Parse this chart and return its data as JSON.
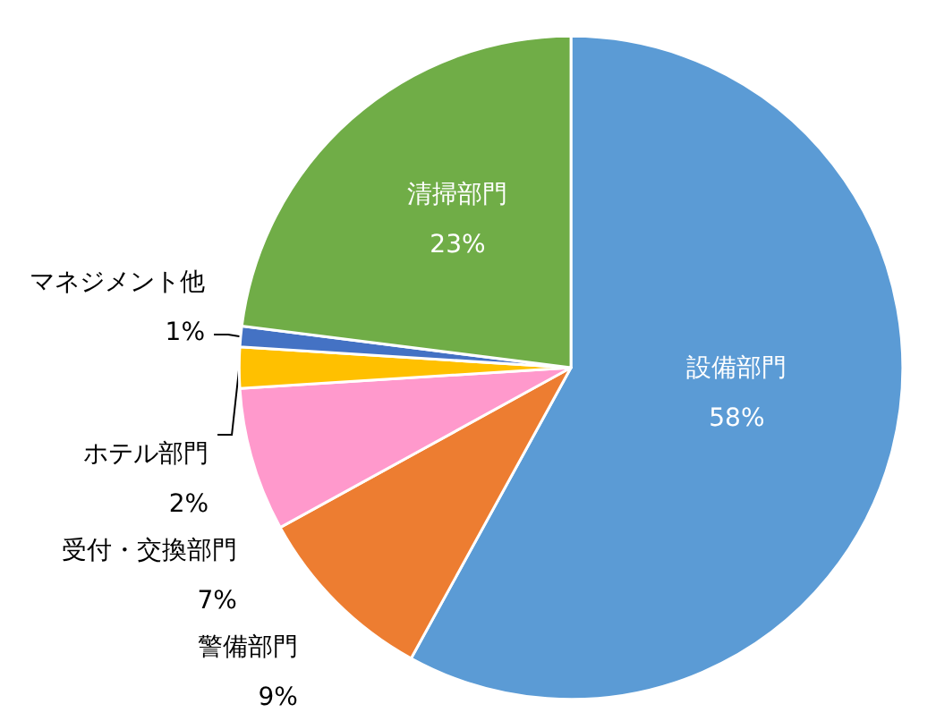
{
  "chart_data": {
    "type": "pie",
    "categories": [
      "設備部門",
      "警備部門",
      "受付・交換部門",
      "ホテル部門",
      "マネジメント他",
      "清掃部門"
    ],
    "values": [
      58,
      9,
      7,
      2,
      1,
      23
    ],
    "colors": [
      "#5b9bd5",
      "#ed7d31",
      "#ff99cc",
      "#ffc000",
      "#4472c4",
      "#70ad47"
    ],
    "value_labels": [
      "58%",
      "9%",
      "7%",
      "2%",
      "1%",
      "23%"
    ],
    "legend": false
  }
}
